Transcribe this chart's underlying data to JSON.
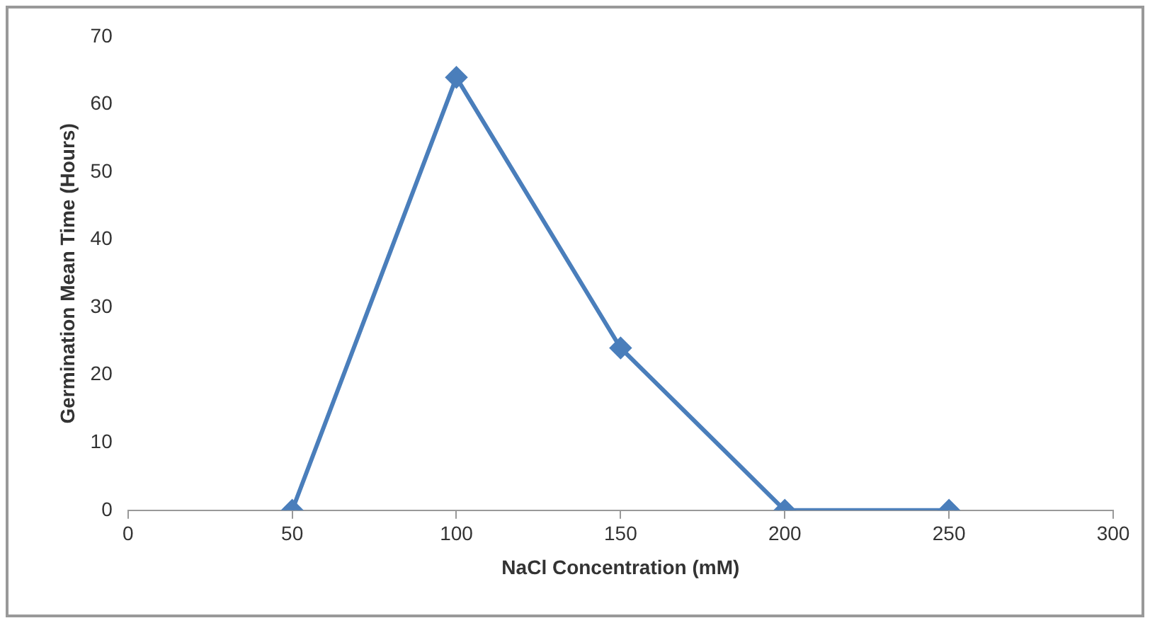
{
  "chart_data": {
    "type": "line",
    "xlabel": "NaCl Concentration (mM)",
    "ylabel": "Germination Mean Time (Hours)",
    "x": [
      50,
      100,
      150,
      200,
      250
    ],
    "series": [
      {
        "color": "#4a7ebb",
        "values": [
          0,
          64,
          24,
          0,
          0
        ]
      }
    ],
    "xlim": [
      0,
      300
    ],
    "xticks": [
      0,
      50,
      100,
      150,
      200,
      250,
      300
    ],
    "ylim": [
      0,
      70
    ],
    "yticks": [
      0,
      10,
      20,
      30,
      40,
      50,
      60,
      70
    ],
    "grid": false,
    "legend": false,
    "marker": "diamond",
    "line_style": "solid"
  }
}
